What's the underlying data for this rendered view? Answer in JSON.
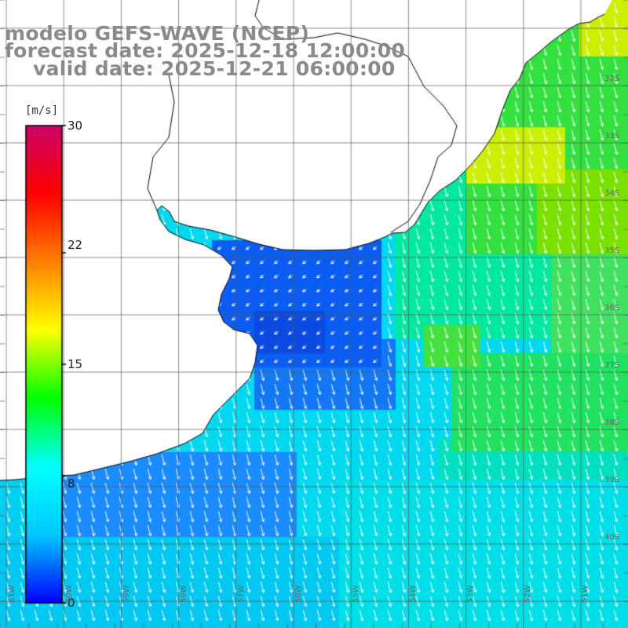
{
  "title": {
    "model": "modelo GEFS-WAVE (NCEP)",
    "forecast": "forecast date: 2025-12-18 12:00:00",
    "valid": "valid date: 2025-12-21 06:00:00"
  },
  "colorbar": {
    "unit": "[m/s]",
    "min": 0,
    "max": 30,
    "ticks": [
      "30",
      "22",
      "15",
      "8",
      "0"
    ],
    "tick_values": [
      30,
      22,
      15,
      8,
      0
    ],
    "colors": [
      "#0000ff",
      "#00c8ff",
      "#00ffff",
      "#00ff00",
      "#ffff00",
      "#ff8000",
      "#ff0000",
      "#cc0066"
    ]
  },
  "lat_labels": [
    "32S",
    "33S",
    "34S",
    "35S",
    "36S",
    "37S",
    "38S",
    "39S",
    "40S"
  ],
  "lon_labels": [
    "61W",
    "60W",
    "59W",
    "58W",
    "57W",
    "56W",
    "55W",
    "54W",
    "53W",
    "52W",
    "51W"
  ],
  "map": {
    "field": "wind speed",
    "ocean_colors": {
      "estuary": "#0b5cf0",
      "shelf": "#1e90ff",
      "offshore": "#00d8f0",
      "strong": "#00e060",
      "max": "#ccee00"
    },
    "arrow_color": "#ffffff",
    "coast_color": "#000000",
    "land_color": "#ffffff"
  }
}
